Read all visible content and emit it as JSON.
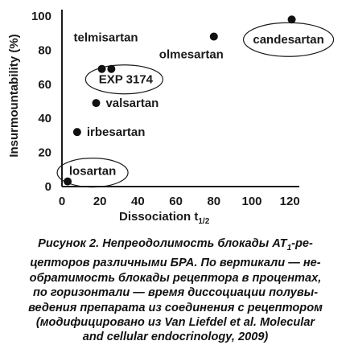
{
  "chart_data": {
    "type": "scatter",
    "xlabel_main": "Dissociation t",
    "xlabel_sub": "1/2",
    "ylabel": "Insurmountability (%)",
    "xlim": [
      0,
      125
    ],
    "ylim": [
      0,
      100
    ],
    "x_ticks": [
      "0",
      "20",
      "40",
      "60",
      "80",
      "100",
      "120"
    ],
    "y_ticks": [
      "0",
      "20",
      "40",
      "60",
      "80",
      "100"
    ],
    "grid": false,
    "points": [
      {
        "name": "candesartan",
        "x": 121,
        "y": 98,
        "circled": true
      },
      {
        "name": "olmesartan",
        "x": 80,
        "y": 88,
        "circled": false
      },
      {
        "name": "telmisartan",
        "x": 21,
        "y": 69,
        "circled": false
      },
      {
        "name": "EXP 3174",
        "x": 26,
        "y": 69,
        "circled": true
      },
      {
        "name": "valsartan",
        "x": 18,
        "y": 49,
        "circled": false
      },
      {
        "name": "irbesartan",
        "x": 8,
        "y": 32,
        "circled": false
      },
      {
        "name": "losartan",
        "x": 3,
        "y": 3,
        "circled": true
      }
    ]
  },
  "caption_lines": [
    "Рисунок 2. Непреодолимость блокады AT",
    "цепторов различными БРА. По вертикали — не-",
    "обратимость блокады рецептора в процентах,",
    "по горизонтали — время диссоциации полувы-",
    "ведения препарата из соединения с рецептором",
    "(модифицировано из Van Liefdel et al. Molecular",
    "and cellular endocrinology, 2009)"
  ],
  "caption_sub": "1",
  "caption_line1_end": "-ре-"
}
